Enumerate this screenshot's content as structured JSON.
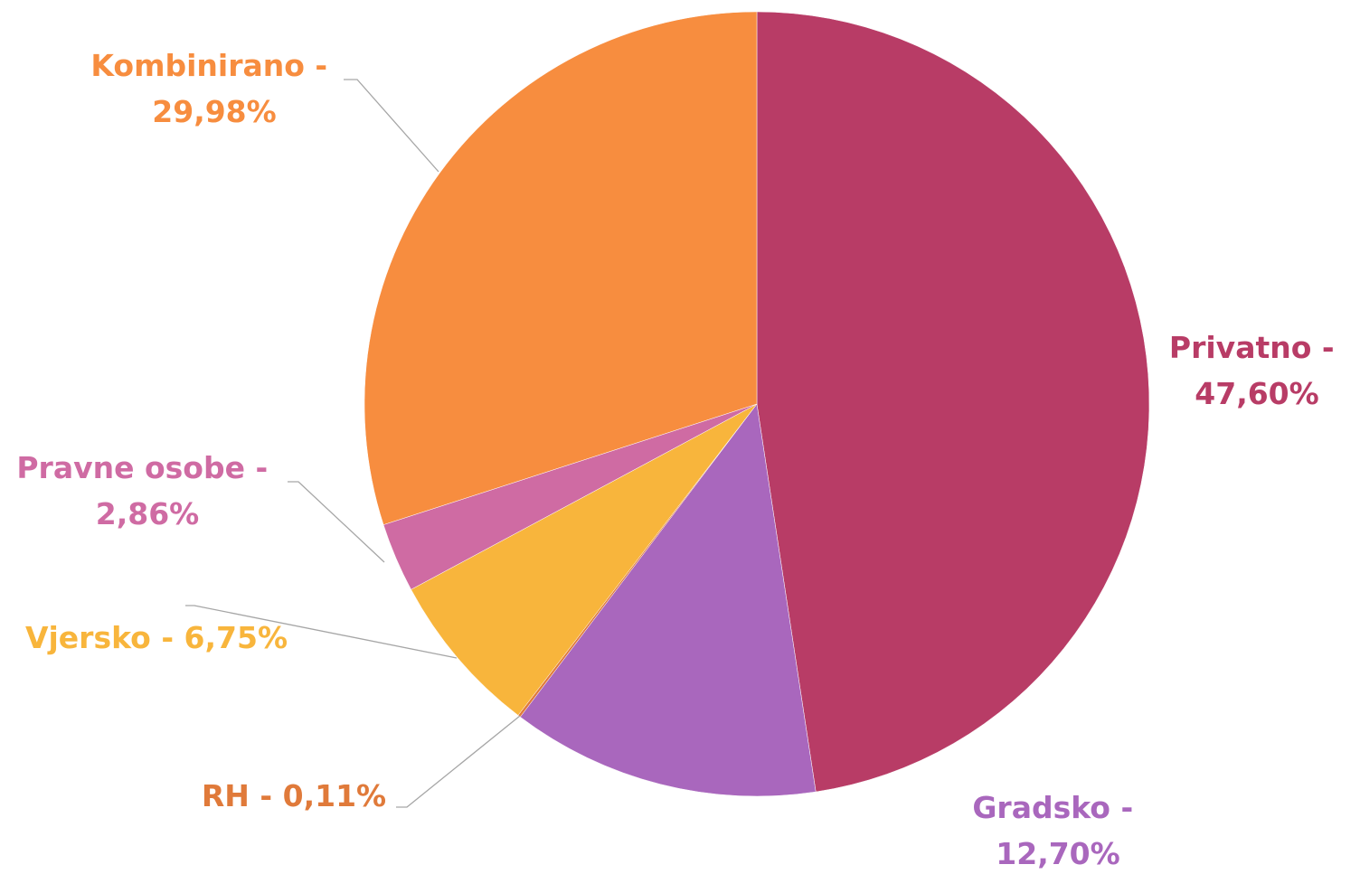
{
  "chart_data": {
    "type": "pie",
    "categories": [
      "Privatno",
      "Gradsko",
      "RH",
      "Vjersko",
      "Pravne osobe",
      "Kombinirano"
    ],
    "values": [
      47.6,
      12.7,
      0.11,
      6.75,
      2.86,
      29.98
    ],
    "value_labels": [
      "47,60%",
      "12,70%",
      "0,11%",
      "6,75%",
      "2,86%",
      "29,98%"
    ],
    "label_separator": " - ",
    "colors": [
      "#b83c66",
      "#a967bd",
      "#e07a3a",
      "#f8b53c",
      "#cf6ba3",
      "#f78d3f"
    ]
  }
}
